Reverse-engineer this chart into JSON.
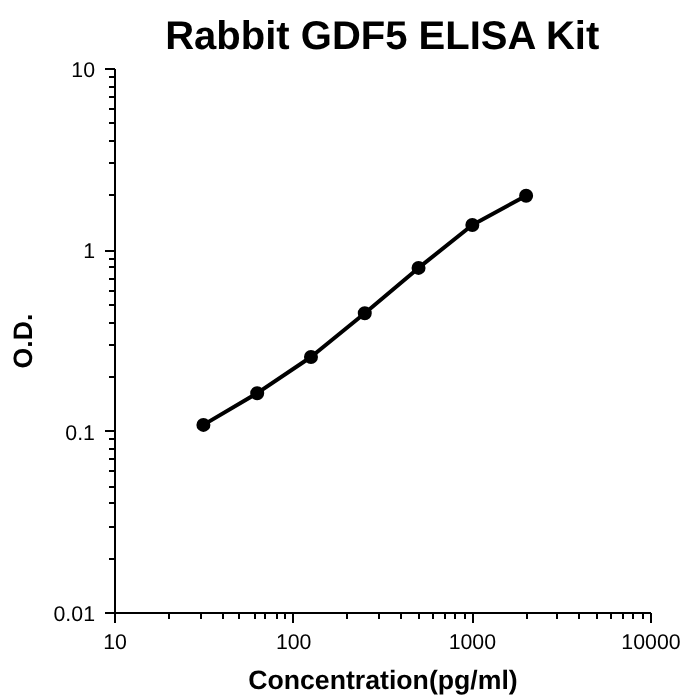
{
  "chart_data": {
    "type": "line",
    "title": "Rabbit GDF5 ELISA Kit",
    "xlabel": "Concentration(pg/ml)",
    "ylabel": "O.D.",
    "x": [
      31.25,
      62.5,
      125,
      250,
      500,
      1000,
      2000
    ],
    "series": [
      {
        "color": "#000000",
        "values": [
          0.109,
          0.163,
          0.258,
          0.45,
          0.8,
          1.38,
          2.0
        ]
      }
    ],
    "log": "xy",
    "xlim": [
      10,
      10000
    ],
    "ylim": [
      0.01,
      10
    ],
    "xticks": [
      10,
      100,
      1000,
      10000
    ],
    "yticks": [
      0.01,
      0.1,
      1,
      10
    ],
    "grid": false,
    "marker": "circle",
    "line_style": "solid"
  }
}
